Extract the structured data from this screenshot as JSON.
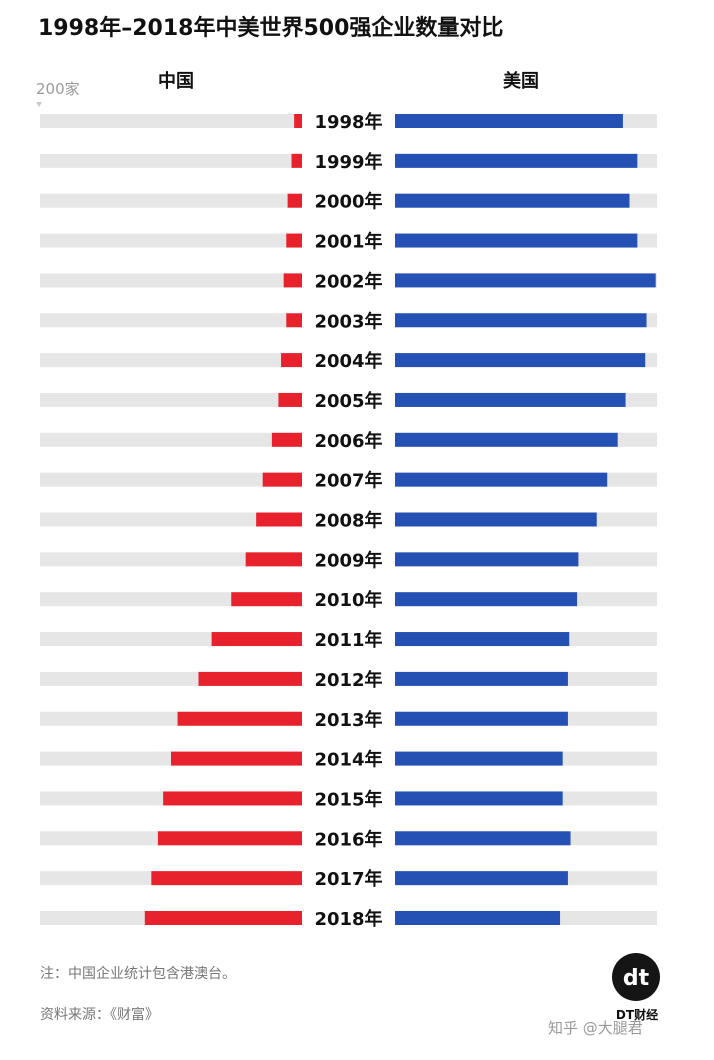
{
  "chart_data": {
    "type": "bar",
    "title": "1998年–2018年中美世界500强企业数量对比",
    "scale_label": "200家",
    "xmax": 200,
    "categories": [
      "1998年",
      "1999年",
      "2000年",
      "2001年",
      "2002年",
      "2003年",
      "2004年",
      "2005年",
      "2006年",
      "2007年",
      "2008年",
      "2009年",
      "2010年",
      "2011年",
      "2012年",
      "2013年",
      "2014年",
      "2015年",
      "2016年",
      "2017年",
      "2018年"
    ],
    "series": [
      {
        "name": "中国",
        "color": "#e8222c",
        "values": [
          6,
          8,
          11,
          12,
          14,
          12,
          16,
          18,
          23,
          30,
          35,
          43,
          54,
          69,
          79,
          95,
          100,
          106,
          110,
          115,
          120
        ]
      },
      {
        "name": "美国",
        "color": "#2451b3",
        "values": [
          174,
          185,
          179,
          185,
          199,
          192,
          191,
          176,
          170,
          162,
          154,
          140,
          139,
          133,
          132,
          132,
          128,
          128,
          134,
          132,
          126
        ]
      }
    ],
    "track_color": "#e6e6e6"
  },
  "footer": {
    "note": "注：中国企业统计包含港澳台。",
    "source": "资料来源：《财富》",
    "logo_mark": "dt",
    "logo_text": "DT财经",
    "attribution": "知乎 @大腿君"
  }
}
